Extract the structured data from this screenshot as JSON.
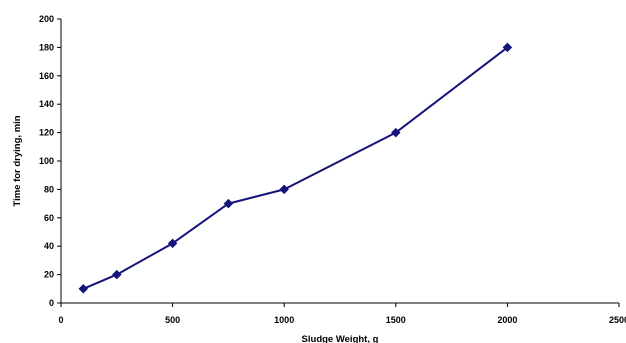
{
  "chart_data": {
    "type": "line",
    "title": "",
    "xlabel": "Sludge Weight, g",
    "ylabel": "Time for drying, min",
    "xlim": [
      0,
      2500
    ],
    "ylim": [
      0,
      200
    ],
    "x_ticks": [
      0,
      500,
      1000,
      1500,
      2000,
      2500
    ],
    "x_tick_labels": [
      "0",
      "500",
      "1000",
      "1500",
      "2000",
      "2500"
    ],
    "y_ticks": [
      0,
      20,
      40,
      60,
      80,
      100,
      120,
      140,
      160,
      180,
      200
    ],
    "y_tick_labels": [
      "0",
      "20",
      "40",
      "60",
      "80",
      "100",
      "120",
      "140",
      "160",
      "180",
      "200"
    ],
    "grid": false,
    "legend": "none",
    "series": [
      {
        "x": [
          100,
          250,
          500,
          750,
          1000,
          1500,
          2000
        ],
        "y": [
          10,
          20,
          42,
          70,
          80,
          120,
          180
        ],
        "color": "#14147a",
        "marker": "diamond"
      }
    ]
  }
}
